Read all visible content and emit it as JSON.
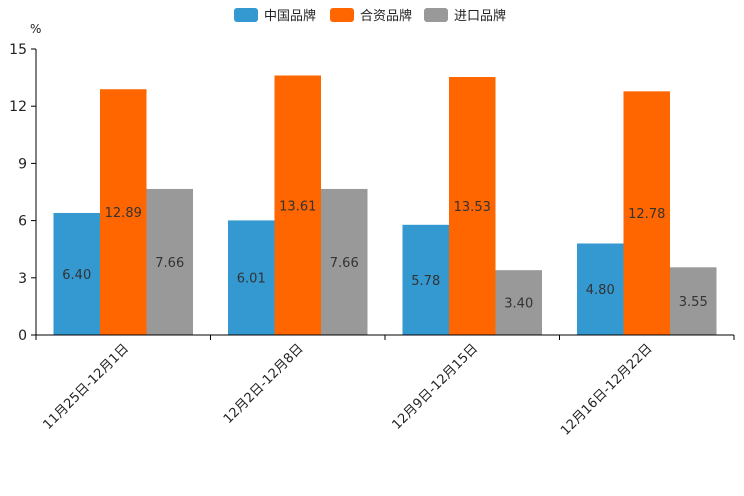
{
  "chart_data": {
    "type": "bar",
    "title": "",
    "unit": "%",
    "xlabel": "",
    "ylabel": "%",
    "ylim": [
      0,
      15
    ],
    "yticks": [
      0,
      3,
      6,
      9,
      12,
      15
    ],
    "grid": false,
    "legend_position": "top-center",
    "categories": [
      "11月25日-12月1日",
      "12月2日-12月8日",
      "12月9日-12月15日",
      "12月16日-12月22日"
    ],
    "series": [
      {
        "name": "中国品牌",
        "color": "#3399d0",
        "values": [
          6.4,
          6.01,
          5.78,
          4.8
        ]
      },
      {
        "name": "合资品牌",
        "color": "#ff6600",
        "values": [
          12.89,
          13.61,
          13.53,
          12.78
        ]
      },
      {
        "name": "进口品牌",
        "color": "#999999",
        "values": [
          7.66,
          7.66,
          3.4,
          3.55
        ]
      }
    ]
  }
}
